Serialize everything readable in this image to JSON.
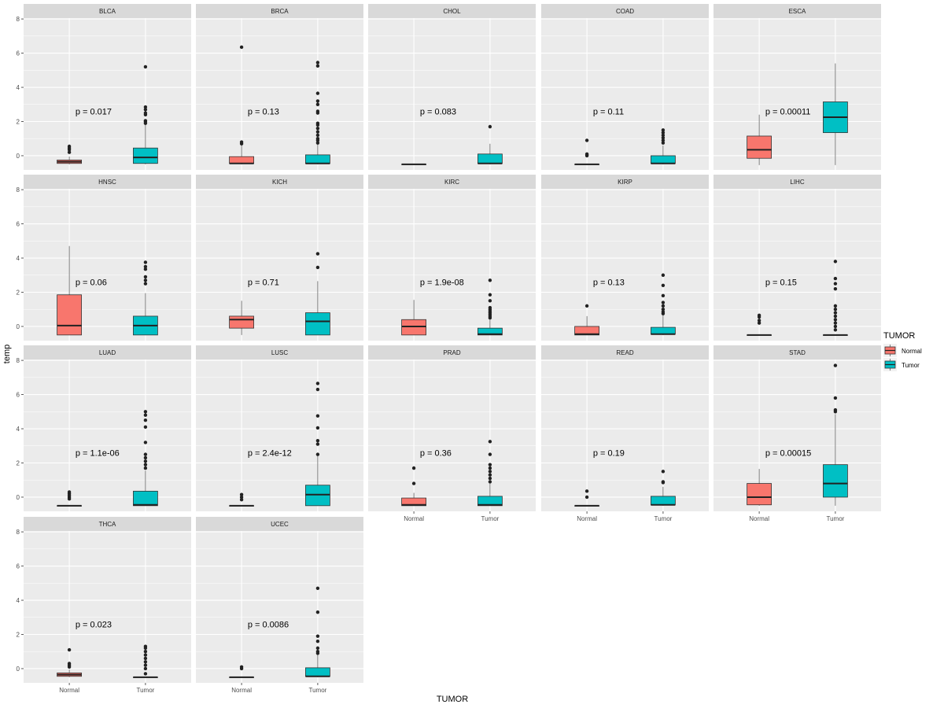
{
  "chart_data": {
    "type": "boxplot",
    "facet_layout": "wrap 5 columns",
    "xlabel": "TUMOR",
    "ylabel": "temp",
    "ylim": [
      -0.83,
      8.05
    ],
    "yticks": [
      0,
      2,
      4,
      6,
      8
    ],
    "categories": [
      "Normal",
      "Tumor"
    ],
    "legend": {
      "title": "TUMOR",
      "position": "right",
      "entries": [
        {
          "label": "Normal",
          "color": "#F8766D"
        },
        {
          "label": "Tumor",
          "color": "#00BFC4"
        }
      ]
    },
    "box_fields": [
      "lower_whisker",
      "q1",
      "median",
      "q3",
      "upper_whisker",
      "outliers"
    ],
    "panels": [
      {
        "name": "BLCA",
        "p": "p = 0.017",
        "Normal": [
          -0.5,
          -0.45,
          -0.35,
          -0.25,
          -0.05,
          [
            0.2,
            0.35,
            0.45,
            0.55
          ]
        ],
        "Tumor": [
          -0.5,
          -0.45,
          -0.1,
          0.45,
          1.85,
          [
            1.9,
            2.0,
            2.05,
            2.4,
            2.5,
            2.7,
            2.85,
            5.2
          ]
        ]
      },
      {
        "name": "BRCA",
        "p": "p = 0.13",
        "Normal": [
          -0.5,
          -0.45,
          -0.45,
          -0.05,
          0.6,
          [
            0.7,
            0.8,
            6.35
          ]
        ],
        "Tumor": [
          -0.5,
          -0.45,
          -0.45,
          0.05,
          0.7,
          [
            0.75,
            0.9,
            1.0,
            1.2,
            1.4,
            1.6,
            1.8,
            1.9,
            2.5,
            2.6,
            3.0,
            3.2,
            3.65,
            5.25,
            5.45
          ]
        ]
      },
      {
        "name": "CHOL",
        "p": "p = 0.083",
        "Normal": [
          -0.5,
          -0.5,
          -0.5,
          -0.5,
          -0.5,
          []
        ],
        "Tumor": [
          -0.5,
          -0.45,
          -0.45,
          0.1,
          0.7,
          [
            1.7
          ]
        ]
      },
      {
        "name": "COAD",
        "p": "p = 0.11",
        "Normal": [
          -0.5,
          -0.5,
          -0.5,
          -0.5,
          -0.5,
          [
            0.0,
            0.05,
            0.1,
            0.9
          ]
        ],
        "Tumor": [
          -0.5,
          -0.45,
          -0.45,
          0.0,
          0.6,
          [
            0.75,
            0.9,
            1.05,
            1.2,
            1.35,
            1.5
          ]
        ]
      },
      {
        "name": "ESCA",
        "p": "p = 0.00011",
        "Normal": [
          -0.55,
          -0.15,
          0.35,
          1.15,
          2.4,
          []
        ],
        "Tumor": [
          -0.55,
          1.35,
          2.25,
          3.15,
          5.4,
          []
        ]
      },
      {
        "name": "HNSC",
        "p": "p = 0.06",
        "Normal": [
          -0.5,
          -0.5,
          0.05,
          1.85,
          4.7,
          []
        ],
        "Tumor": [
          -0.5,
          -0.5,
          0.05,
          0.6,
          1.95,
          [
            2.5,
            2.7,
            2.9,
            3.35,
            3.5,
            3.75
          ]
        ]
      },
      {
        "name": "KICH",
        "p": "p = 0.71",
        "Normal": [
          -0.5,
          -0.1,
          0.4,
          0.6,
          1.5,
          []
        ],
        "Tumor": [
          -0.5,
          -0.5,
          0.3,
          0.8,
          2.65,
          [
            3.45,
            4.25
          ]
        ]
      },
      {
        "name": "KIRC",
        "p": "p = 1.9e-08",
        "Normal": [
          -0.5,
          -0.5,
          0.0,
          0.4,
          1.55,
          []
        ],
        "Tumor": [
          -0.5,
          -0.5,
          -0.45,
          -0.1,
          0.4,
          [
            0.5,
            0.6,
            0.7,
            0.8,
            0.9,
            1.0,
            1.1,
            1.5,
            1.85,
            2.7
          ]
        ]
      },
      {
        "name": "KIRP",
        "p": "p = 0.13",
        "Normal": [
          -0.5,
          -0.5,
          -0.45,
          0.0,
          0.6,
          [
            1.2
          ]
        ],
        "Tumor": [
          -0.5,
          -0.45,
          -0.45,
          -0.05,
          0.7,
          [
            0.75,
            0.85,
            1.0,
            1.2,
            1.4,
            1.8,
            2.4,
            3.0
          ]
        ]
      },
      {
        "name": "LIHC",
        "p": "p = 0.15",
        "Normal": [
          -0.5,
          -0.5,
          -0.5,
          -0.5,
          -0.5,
          [
            0.2,
            0.35,
            0.55,
            0.65
          ]
        ],
        "Tumor": [
          -0.5,
          -0.5,
          -0.5,
          -0.5,
          -0.5,
          [
            -0.2,
            0.0,
            0.2,
            0.4,
            0.6,
            0.8,
            1.0,
            1.2,
            2.2,
            2.5,
            2.8,
            3.8
          ]
        ]
      },
      {
        "name": "LUAD",
        "p": "p = 1.1e-06",
        "Normal": [
          -0.5,
          -0.5,
          -0.5,
          -0.5,
          -0.5,
          [
            -0.1,
            0.0,
            0.1,
            0.2,
            0.3
          ]
        ],
        "Tumor": [
          -0.5,
          -0.5,
          -0.45,
          0.35,
          1.55,
          [
            1.7,
            1.9,
            2.1,
            2.3,
            2.5,
            3.2,
            4.1,
            4.5,
            4.8,
            5.0
          ]
        ]
      },
      {
        "name": "LUSC",
        "p": "p = 2.4e-12",
        "Normal": [
          -0.5,
          -0.5,
          -0.5,
          -0.5,
          -0.5,
          [
            -0.15,
            0.0,
            0.15
          ]
        ],
        "Tumor": [
          -0.5,
          -0.5,
          0.15,
          0.7,
          2.45,
          [
            2.5,
            3.1,
            3.3,
            4.05,
            4.75,
            6.3,
            6.65
          ]
        ]
      },
      {
        "name": "PRAD",
        "p": "p = 0.36",
        "Normal": [
          -0.5,
          -0.5,
          -0.45,
          -0.05,
          0.25,
          [
            0.8,
            1.7
          ]
        ],
        "Tumor": [
          -0.5,
          -0.5,
          -0.45,
          0.05,
          0.8,
          [
            0.9,
            1.1,
            1.3,
            1.5,
            1.7,
            1.9,
            2.5,
            3.25
          ]
        ]
      },
      {
        "name": "READ",
        "p": "p = 0.19",
        "Normal": [
          -0.5,
          -0.5,
          -0.5,
          -0.5,
          -0.5,
          [
            0.0,
            0.35
          ]
        ],
        "Tumor": [
          -0.5,
          -0.45,
          -0.45,
          0.05,
          0.6,
          [
            0.85,
            0.9,
            1.5
          ]
        ]
      },
      {
        "name": "STAD",
        "p": "p = 0.00015",
        "Normal": [
          -0.5,
          -0.45,
          0.0,
          0.8,
          1.65,
          []
        ],
        "Tumor": [
          -0.5,
          0.0,
          0.8,
          1.9,
          4.85,
          [
            5.0,
            5.1,
            5.8,
            7.7
          ]
        ]
      },
      {
        "name": "THCA",
        "p": "p = 0.023",
        "Normal": [
          -0.5,
          -0.45,
          -0.35,
          -0.25,
          -0.05,
          [
            0.1,
            0.2,
            0.3,
            1.1
          ]
        ],
        "Tumor": [
          -0.5,
          -0.5,
          -0.5,
          -0.5,
          -0.5,
          [
            -0.3,
            0.0,
            0.2,
            0.4,
            0.6,
            0.8,
            1.0,
            1.2,
            1.3
          ]
        ]
      },
      {
        "name": "UCEC",
        "p": "p = 0.0086",
        "Normal": [
          -0.5,
          -0.5,
          -0.5,
          -0.5,
          -0.5,
          [
            0.0,
            0.1
          ]
        ],
        "Tumor": [
          -0.5,
          -0.45,
          -0.45,
          0.05,
          0.8,
          [
            0.9,
            1.0,
            1.2,
            1.6,
            1.9,
            3.3,
            4.7
          ]
        ]
      }
    ]
  }
}
